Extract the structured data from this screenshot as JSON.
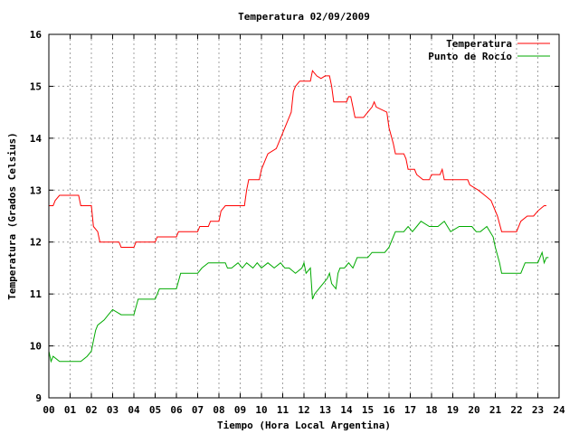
{
  "chart_data": {
    "type": "line",
    "title": "Temperatura 02/09/2009",
    "xlabel": "Tiempo (Hora Local Argentina)",
    "ylabel": "Temperatura (Grados Celsius)",
    "xlim": [
      0,
      24
    ],
    "ylim": [
      9,
      16
    ],
    "x_ticks": [
      0,
      1,
      2,
      3,
      4,
      5,
      6,
      7,
      8,
      9,
      10,
      11,
      12,
      13,
      14,
      15,
      16,
      17,
      18,
      19,
      20,
      21,
      22,
      23,
      24
    ],
    "x_tick_labels": [
      "00",
      "01",
      "02",
      "03",
      "04",
      "05",
      "06",
      "07",
      "08",
      "09",
      "10",
      "11",
      "12",
      "13",
      "14",
      "15",
      "16",
      "17",
      "18",
      "19",
      "20",
      "21",
      "22",
      "23",
      "24"
    ],
    "y_ticks": [
      9,
      10,
      11,
      12,
      13,
      14,
      15,
      16
    ],
    "y_tick_labels": [
      "9",
      "10",
      "11",
      "12",
      "13",
      "14",
      "15",
      "16"
    ],
    "grid": true,
    "legend_position": "top-right",
    "series": [
      {
        "name": "Temperatura",
        "color": "#ff0000",
        "points": [
          [
            0.0,
            12.7
          ],
          [
            0.2,
            12.7
          ],
          [
            0.3,
            12.8
          ],
          [
            0.5,
            12.9
          ],
          [
            1.4,
            12.9
          ],
          [
            1.5,
            12.7
          ],
          [
            2.0,
            12.7
          ],
          [
            2.1,
            12.3
          ],
          [
            2.3,
            12.2
          ],
          [
            2.4,
            12.0
          ],
          [
            3.3,
            12.0
          ],
          [
            3.4,
            11.9
          ],
          [
            4.0,
            11.9
          ],
          [
            4.1,
            12.0
          ],
          [
            5.0,
            12.0
          ],
          [
            5.1,
            12.1
          ],
          [
            6.0,
            12.1
          ],
          [
            6.1,
            12.2
          ],
          [
            7.0,
            12.2
          ],
          [
            7.1,
            12.3
          ],
          [
            7.5,
            12.3
          ],
          [
            7.6,
            12.4
          ],
          [
            8.0,
            12.4
          ],
          [
            8.1,
            12.6
          ],
          [
            8.3,
            12.7
          ],
          [
            9.2,
            12.7
          ],
          [
            9.3,
            13.0
          ],
          [
            9.4,
            13.2
          ],
          [
            9.9,
            13.2
          ],
          [
            10.0,
            13.4
          ],
          [
            10.2,
            13.6
          ],
          [
            10.3,
            13.7
          ],
          [
            10.7,
            13.8
          ],
          [
            10.9,
            14.0
          ],
          [
            11.0,
            14.1
          ],
          [
            11.2,
            14.3
          ],
          [
            11.4,
            14.5
          ],
          [
            11.5,
            14.9
          ],
          [
            11.6,
            15.0
          ],
          [
            11.8,
            15.1
          ],
          [
            12.3,
            15.1
          ],
          [
            12.4,
            15.3
          ],
          [
            12.6,
            15.2
          ],
          [
            12.8,
            15.15
          ],
          [
            13.0,
            15.2
          ],
          [
            13.2,
            15.2
          ],
          [
            13.3,
            15.0
          ],
          [
            13.4,
            14.7
          ],
          [
            13.8,
            14.7
          ],
          [
            14.0,
            14.7
          ],
          [
            14.1,
            14.8
          ],
          [
            14.2,
            14.8
          ],
          [
            14.3,
            14.6
          ],
          [
            14.4,
            14.4
          ],
          [
            14.8,
            14.4
          ],
          [
            15.0,
            14.5
          ],
          [
            15.2,
            14.6
          ],
          [
            15.3,
            14.7
          ],
          [
            15.4,
            14.6
          ],
          [
            15.9,
            14.5
          ],
          [
            16.0,
            14.2
          ],
          [
            16.2,
            13.9
          ],
          [
            16.3,
            13.7
          ],
          [
            16.7,
            13.7
          ],
          [
            16.8,
            13.6
          ],
          [
            16.9,
            13.4
          ],
          [
            17.2,
            13.4
          ],
          [
            17.3,
            13.3
          ],
          [
            17.6,
            13.2
          ],
          [
            17.9,
            13.2
          ],
          [
            18.0,
            13.3
          ],
          [
            18.4,
            13.3
          ],
          [
            18.5,
            13.4
          ],
          [
            18.6,
            13.2
          ],
          [
            19.3,
            13.2
          ],
          [
            19.7,
            13.2
          ],
          [
            19.8,
            13.1
          ],
          [
            20.2,
            13.0
          ],
          [
            20.5,
            12.9
          ],
          [
            20.8,
            12.8
          ],
          [
            21.1,
            12.5
          ],
          [
            21.3,
            12.2
          ],
          [
            21.6,
            12.2
          ],
          [
            22.0,
            12.2
          ],
          [
            22.2,
            12.4
          ],
          [
            22.5,
            12.5
          ],
          [
            22.8,
            12.5
          ],
          [
            23.0,
            12.6
          ],
          [
            23.3,
            12.7
          ],
          [
            23.4,
            12.7
          ]
        ]
      },
      {
        "name": "Punto de Rocío",
        "color": "#00aa00",
        "points": [
          [
            0.0,
            9.9
          ],
          [
            0.1,
            9.7
          ],
          [
            0.2,
            9.8
          ],
          [
            0.5,
            9.7
          ],
          [
            1.0,
            9.7
          ],
          [
            1.5,
            9.7
          ],
          [
            1.8,
            9.8
          ],
          [
            2.0,
            9.9
          ],
          [
            2.1,
            10.1
          ],
          [
            2.2,
            10.3
          ],
          [
            2.3,
            10.4
          ],
          [
            2.6,
            10.5
          ],
          [
            2.8,
            10.6
          ],
          [
            3.0,
            10.7
          ],
          [
            3.4,
            10.6
          ],
          [
            4.0,
            10.6
          ],
          [
            4.2,
            10.9
          ],
          [
            5.0,
            10.9
          ],
          [
            5.2,
            11.1
          ],
          [
            6.0,
            11.1
          ],
          [
            6.2,
            11.4
          ],
          [
            7.0,
            11.4
          ],
          [
            7.2,
            11.5
          ],
          [
            7.5,
            11.6
          ],
          [
            8.0,
            11.6
          ],
          [
            8.3,
            11.6
          ],
          [
            8.4,
            11.5
          ],
          [
            8.6,
            11.5
          ],
          [
            8.9,
            11.6
          ],
          [
            9.1,
            11.5
          ],
          [
            9.3,
            11.6
          ],
          [
            9.6,
            11.5
          ],
          [
            9.8,
            11.6
          ],
          [
            10.0,
            11.5
          ],
          [
            10.3,
            11.6
          ],
          [
            10.6,
            11.5
          ],
          [
            10.9,
            11.6
          ],
          [
            11.1,
            11.5
          ],
          [
            11.3,
            11.5
          ],
          [
            11.6,
            11.4
          ],
          [
            11.9,
            11.5
          ],
          [
            12.0,
            11.6
          ],
          [
            12.1,
            11.4
          ],
          [
            12.3,
            11.5
          ],
          [
            12.4,
            10.9
          ],
          [
            12.5,
            11.0
          ],
          [
            12.7,
            11.1
          ],
          [
            12.9,
            11.2
          ],
          [
            13.1,
            11.3
          ],
          [
            13.2,
            11.4
          ],
          [
            13.3,
            11.2
          ],
          [
            13.5,
            11.1
          ],
          [
            13.6,
            11.4
          ],
          [
            13.7,
            11.5
          ],
          [
            13.9,
            11.5
          ],
          [
            14.1,
            11.6
          ],
          [
            14.3,
            11.5
          ],
          [
            14.5,
            11.7
          ],
          [
            14.8,
            11.7
          ],
          [
            15.0,
            11.7
          ],
          [
            15.2,
            11.8
          ],
          [
            15.5,
            11.8
          ],
          [
            15.8,
            11.8
          ],
          [
            16.0,
            11.9
          ],
          [
            16.2,
            12.1
          ],
          [
            16.3,
            12.2
          ],
          [
            16.7,
            12.2
          ],
          [
            16.9,
            12.3
          ],
          [
            17.1,
            12.2
          ],
          [
            17.3,
            12.3
          ],
          [
            17.5,
            12.4
          ],
          [
            17.9,
            12.3
          ],
          [
            18.3,
            12.3
          ],
          [
            18.6,
            12.4
          ],
          [
            18.9,
            12.2
          ],
          [
            19.3,
            12.3
          ],
          [
            19.6,
            12.3
          ],
          [
            19.9,
            12.3
          ],
          [
            20.1,
            12.2
          ],
          [
            20.3,
            12.2
          ],
          [
            20.6,
            12.3
          ],
          [
            20.9,
            12.1
          ],
          [
            21.0,
            11.9
          ],
          [
            21.2,
            11.6
          ],
          [
            21.3,
            11.4
          ],
          [
            22.2,
            11.4
          ],
          [
            22.4,
            11.6
          ],
          [
            22.8,
            11.6
          ],
          [
            23.0,
            11.6
          ],
          [
            23.2,
            11.8
          ],
          [
            23.3,
            11.6
          ],
          [
            23.4,
            11.7
          ],
          [
            23.5,
            11.7
          ]
        ]
      }
    ]
  }
}
